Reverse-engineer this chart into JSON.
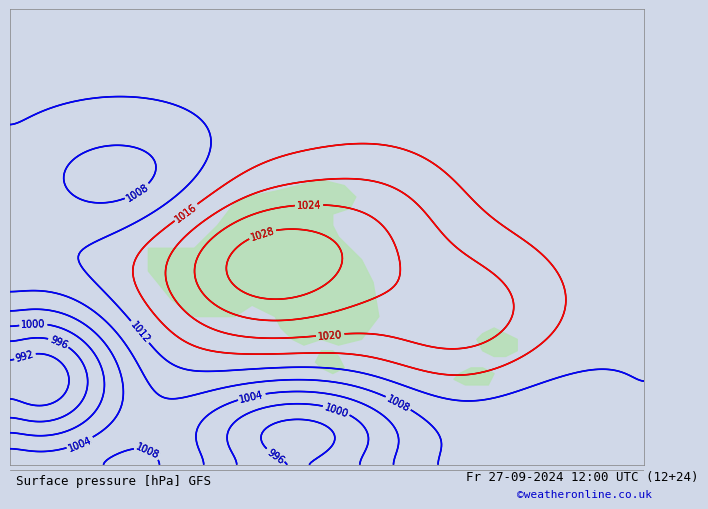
{
  "title_left": "Surface pressure [hPa] GFS",
  "title_right": "Fr 27-09-2024 12:00 UTC (12+24)",
  "watermark": "©weatheronline.co.uk",
  "bg_color": "#d0d8e8",
  "land_color": "#b8e0b8",
  "fig_width": 6.34,
  "fig_height": 4.9,
  "footer_font_size": 9,
  "watermark_color": "#0000cc"
}
